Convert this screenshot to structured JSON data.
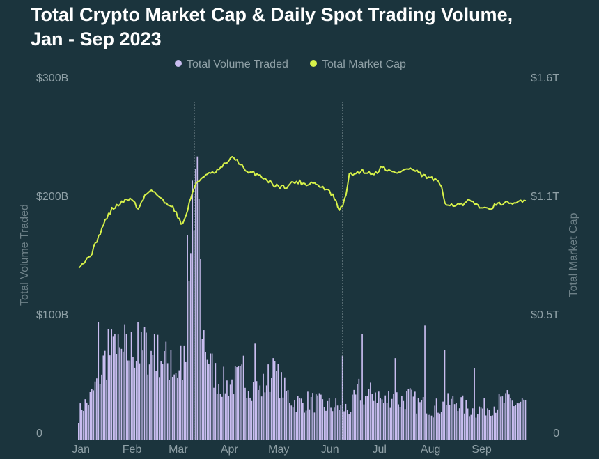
{
  "title": {
    "line1": "Total Crypto Market Cap & Daily Spot Trading Volume,",
    "line2": "Jan - Sep 2023"
  },
  "colors": {
    "background": "#1b343d",
    "volume": "#c9bdf0",
    "market_cap": "#d7f24a",
    "text": "#8fa0a6"
  },
  "chart_data": {
    "type": "bar+line",
    "legend": [
      "Total Volume Traded",
      "Total Market Cap"
    ],
    "y_left": {
      "label": "Total Volume Traded",
      "ticks": [
        "0",
        "$100B",
        "$200B",
        "$300B"
      ],
      "tick_values": [
        0,
        100,
        200,
        300
      ],
      "range": [
        0,
        300
      ],
      "unit": "billion USD"
    },
    "y_right": {
      "label": "Total Market Cap",
      "ticks": [
        "0",
        "$0.5T",
        "$1.1T",
        "$1.6T"
      ],
      "tick_values": [
        0,
        0.5,
        1.1,
        1.6
      ],
      "range": [
        0,
        1.6
      ],
      "unit": "trillion USD"
    },
    "x_months": [
      "Jan",
      "Feb",
      "Mar",
      "Apr",
      "May",
      "Jun",
      "Jul",
      "Aug",
      "Sep"
    ],
    "x_month_start_day": [
      0,
      31,
      59,
      90,
      120,
      151,
      181,
      212,
      243
    ],
    "vertical_markers_day": [
      70,
      160
    ],
    "days": 272,
    "volume_anchors": [
      [
        0,
        20
      ],
      [
        2,
        28
      ],
      [
        5,
        30
      ],
      [
        8,
        36
      ],
      [
        12,
        50
      ],
      [
        16,
        65
      ],
      [
        20,
        72
      ],
      [
        25,
        68
      ],
      [
        30,
        70
      ],
      [
        33,
        75
      ],
      [
        38,
        70
      ],
      [
        42,
        72
      ],
      [
        46,
        68
      ],
      [
        50,
        70
      ],
      [
        54,
        62
      ],
      [
        58,
        58
      ],
      [
        62,
        55
      ],
      [
        65,
        65
      ],
      [
        67,
        120
      ],
      [
        69,
        150
      ],
      [
        71,
        190
      ],
      [
        72,
        160
      ],
      [
        73,
        120
      ],
      [
        76,
        85
      ],
      [
        80,
        60
      ],
      [
        85,
        48
      ],
      [
        90,
        45
      ],
      [
        95,
        48
      ],
      [
        100,
        50
      ],
      [
        105,
        45
      ],
      [
        110,
        40
      ],
      [
        115,
        50
      ],
      [
        120,
        52
      ],
      [
        125,
        40
      ],
      [
        130,
        32
      ],
      [
        135,
        30
      ],
      [
        140,
        32
      ],
      [
        145,
        30
      ],
      [
        150,
        28
      ],
      [
        155,
        28
      ],
      [
        160,
        26
      ],
      [
        165,
        26
      ],
      [
        170,
        40
      ],
      [
        175,
        35
      ],
      [
        180,
        40
      ],
      [
        185,
        30
      ],
      [
        190,
        38
      ],
      [
        195,
        32
      ],
      [
        200,
        35
      ],
      [
        205,
        30
      ],
      [
        210,
        28
      ],
      [
        215,
        26
      ],
      [
        220,
        28
      ],
      [
        225,
        30
      ],
      [
        230,
        32
      ],
      [
        235,
        26
      ],
      [
        240,
        24
      ],
      [
        245,
        26
      ],
      [
        250,
        28
      ],
      [
        255,
        30
      ],
      [
        260,
        32
      ],
      [
        265,
        30
      ],
      [
        271,
        30
      ]
    ],
    "volume_spikes": [
      [
        12,
        98
      ],
      [
        18,
        92
      ],
      [
        22,
        88
      ],
      [
        28,
        96
      ],
      [
        36,
        98
      ],
      [
        40,
        94
      ],
      [
        46,
        88
      ],
      [
        56,
        75
      ],
      [
        62,
        78
      ],
      [
        66,
        170
      ],
      [
        68,
        155
      ],
      [
        69,
        215
      ],
      [
        71,
        225
      ],
      [
        72,
        235
      ],
      [
        73,
        200
      ],
      [
        74,
        150
      ],
      [
        100,
        70
      ],
      [
        107,
        80
      ],
      [
        118,
        68
      ],
      [
        160,
        70
      ],
      [
        172,
        88
      ],
      [
        192,
        68
      ],
      [
        210,
        95
      ],
      [
        222,
        75
      ],
      [
        240,
        60
      ]
    ],
    "market_cap_anchors": [
      [
        0,
        0.77
      ],
      [
        4,
        0.79
      ],
      [
        8,
        0.83
      ],
      [
        12,
        0.9
      ],
      [
        16,
        0.97
      ],
      [
        20,
        1.02
      ],
      [
        26,
        1.05
      ],
      [
        32,
        1.07
      ],
      [
        36,
        1.02
      ],
      [
        40,
        1.08
      ],
      [
        44,
        1.11
      ],
      [
        48,
        1.08
      ],
      [
        52,
        1.05
      ],
      [
        56,
        1.04
      ],
      [
        60,
        0.99
      ],
      [
        63,
        0.95
      ],
      [
        66,
        1.02
      ],
      [
        69,
        1.1
      ],
      [
        72,
        1.14
      ],
      [
        76,
        1.17
      ],
      [
        82,
        1.18
      ],
      [
        86,
        1.2
      ],
      [
        90,
        1.23
      ],
      [
        94,
        1.25
      ],
      [
        98,
        1.22
      ],
      [
        102,
        1.18
      ],
      [
        106,
        1.18
      ],
      [
        110,
        1.17
      ],
      [
        114,
        1.15
      ],
      [
        118,
        1.13
      ],
      [
        122,
        1.12
      ],
      [
        126,
        1.12
      ],
      [
        130,
        1.14
      ],
      [
        134,
        1.14
      ],
      [
        138,
        1.13
      ],
      [
        142,
        1.14
      ],
      [
        146,
        1.12
      ],
      [
        150,
        1.11
      ],
      [
        154,
        1.08
      ],
      [
        158,
        1.02
      ],
      [
        160,
        1.03
      ],
      [
        162,
        1.09
      ],
      [
        164,
        1.17
      ],
      [
        168,
        1.18
      ],
      [
        172,
        1.19
      ],
      [
        176,
        1.18
      ],
      [
        180,
        1.18
      ],
      [
        184,
        1.21
      ],
      [
        188,
        1.19
      ],
      [
        192,
        1.18
      ],
      [
        196,
        1.19
      ],
      [
        200,
        1.2
      ],
      [
        204,
        1.19
      ],
      [
        208,
        1.17
      ],
      [
        212,
        1.16
      ],
      [
        216,
        1.15
      ],
      [
        220,
        1.12
      ],
      [
        222,
        1.05
      ],
      [
        226,
        1.04
      ],
      [
        230,
        1.04
      ],
      [
        234,
        1.04
      ],
      [
        236,
        1.06
      ],
      [
        238,
        1.05
      ],
      [
        242,
        1.04
      ],
      [
        246,
        1.02
      ],
      [
        250,
        1.03
      ],
      [
        254,
        1.04
      ],
      [
        258,
        1.05
      ],
      [
        262,
        1.04
      ],
      [
        266,
        1.05
      ],
      [
        268,
        1.06
      ],
      [
        271,
        1.06
      ]
    ]
  }
}
